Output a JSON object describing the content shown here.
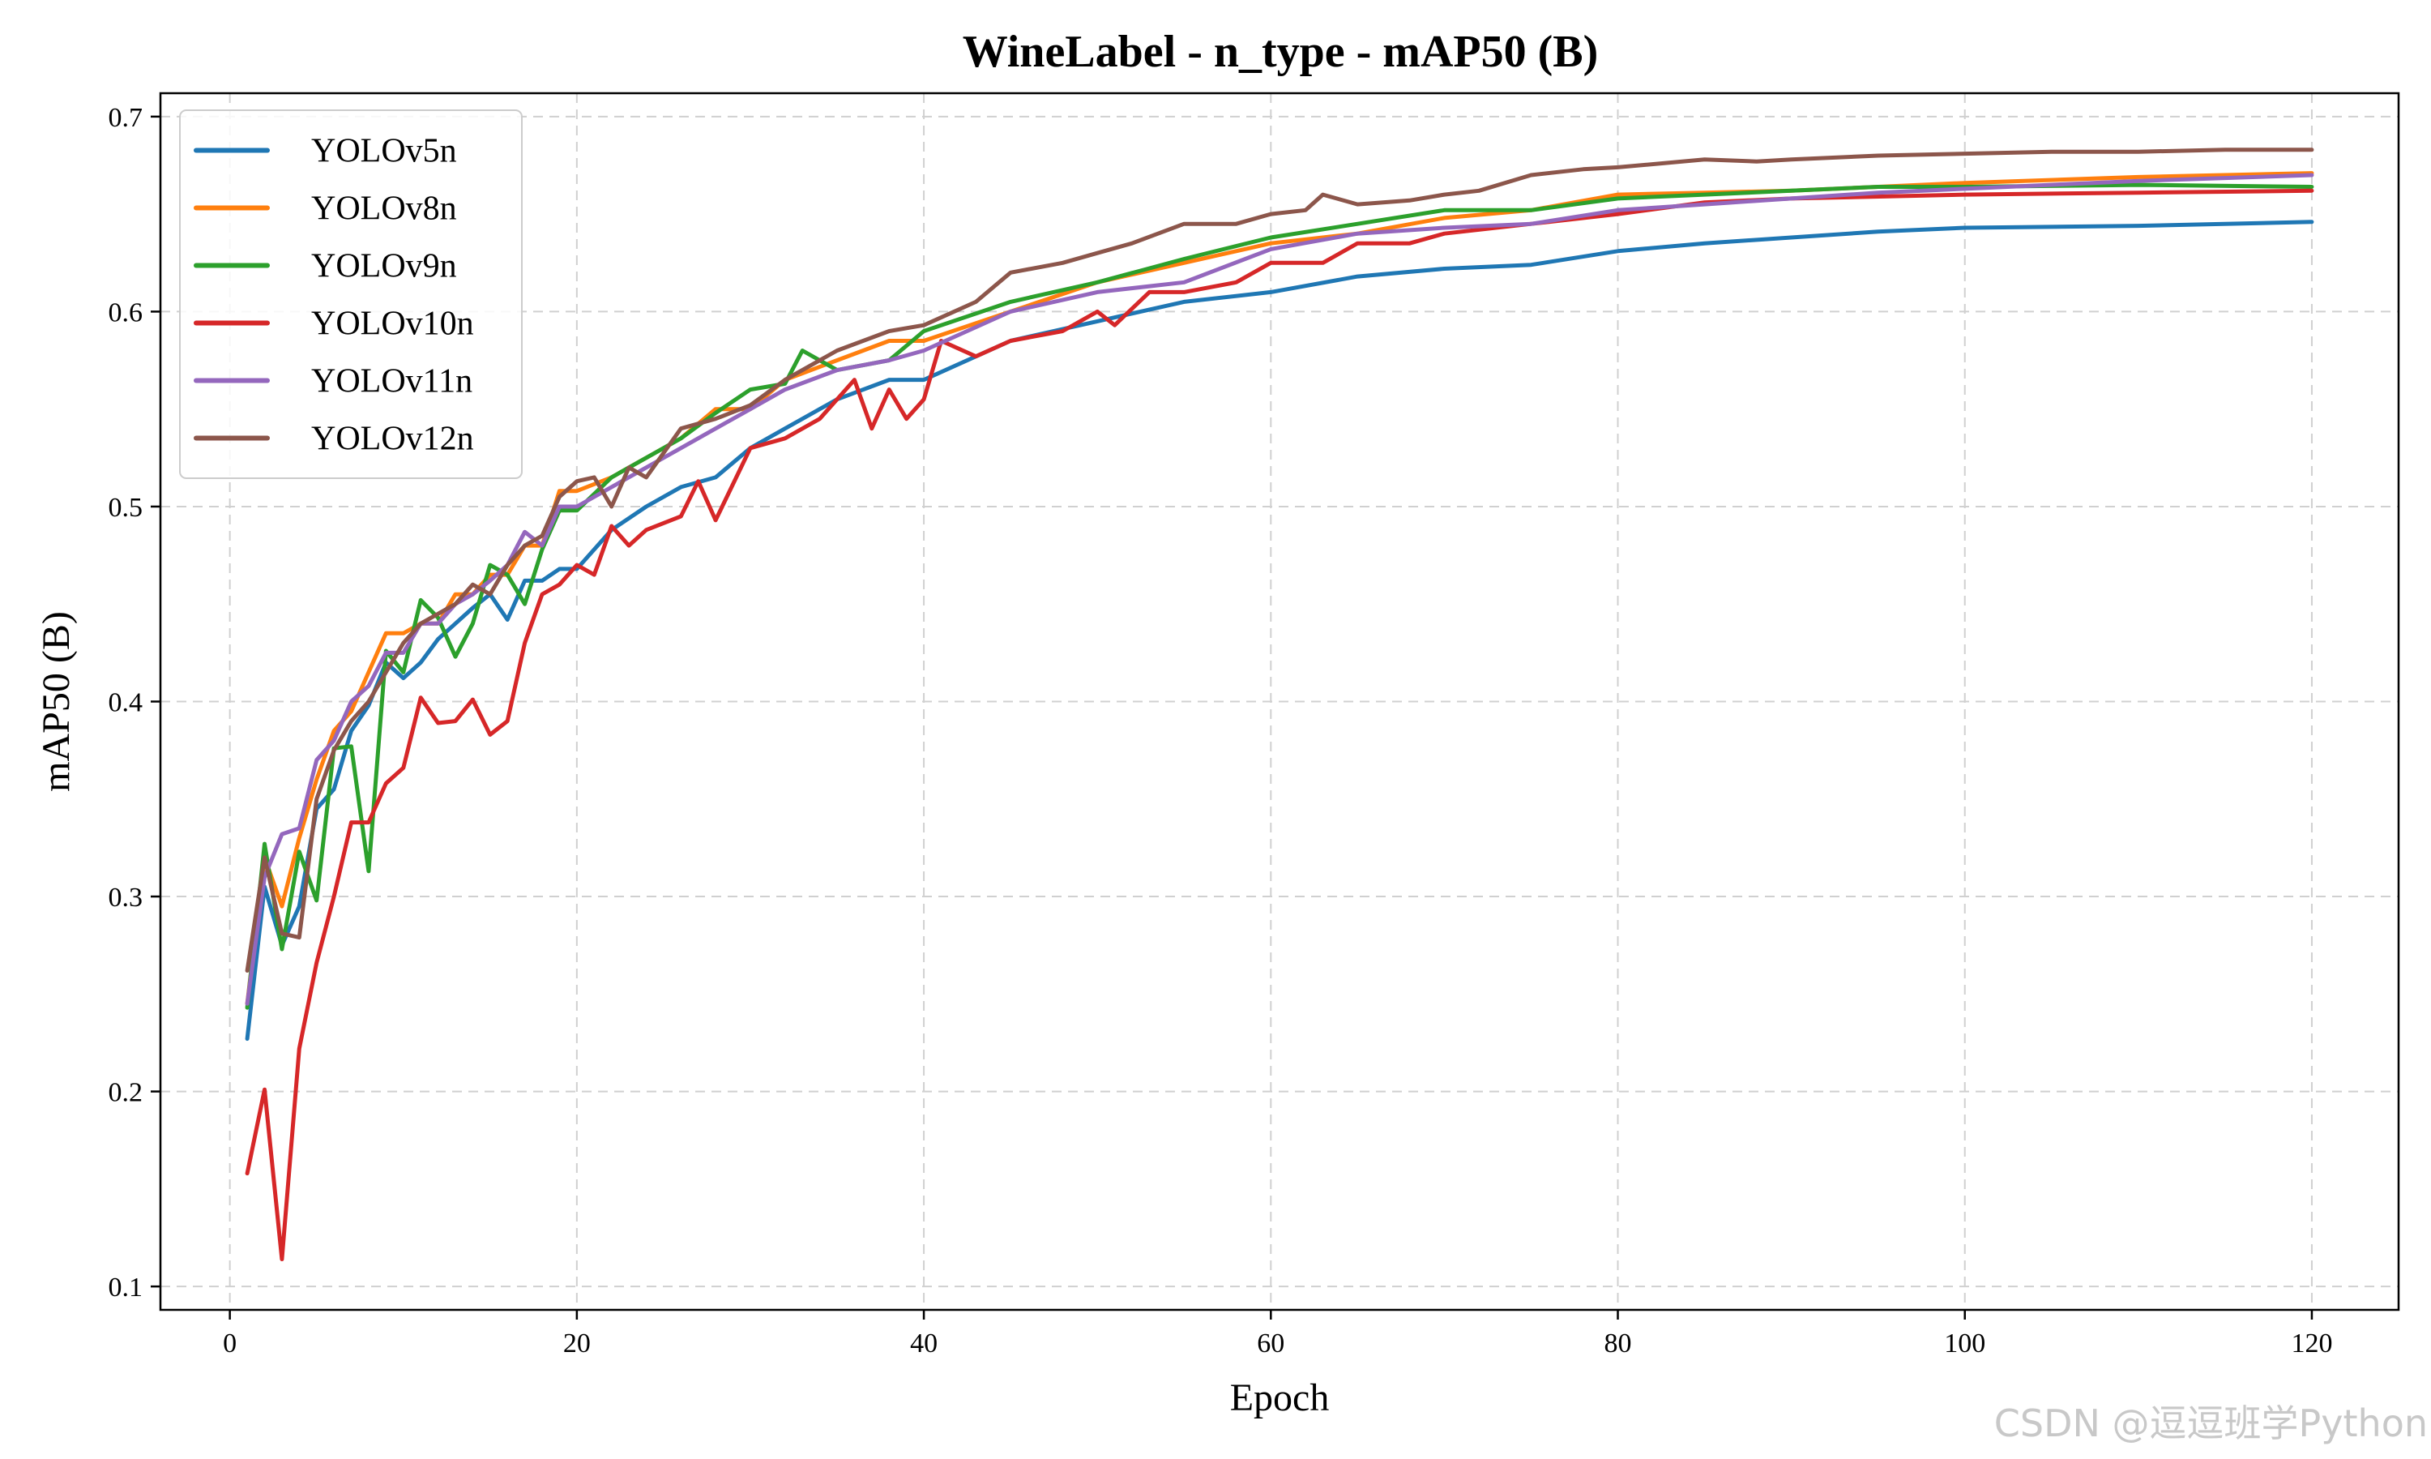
{
  "chart_data": {
    "type": "line",
    "title": "WineLabel - n_type - mAP50 (B)",
    "xlabel": "Epoch",
    "ylabel": "mAP50 (B)",
    "xlim": [
      -4,
      125
    ],
    "ylim": [
      0.088,
      0.712
    ],
    "xticks": [
      0,
      20,
      40,
      60,
      80,
      100,
      120
    ],
    "yticks": [
      0.1,
      0.2,
      0.3,
      0.4,
      0.5,
      0.6,
      0.7
    ],
    "grid": true,
    "legend_position": "top-left",
    "watermark": "CSDN @逗逗班学Python",
    "series": [
      {
        "name": "YOLOv5n",
        "color": "#1f77b4",
        "x": [
          1,
          2,
          3,
          4,
          5,
          6,
          7,
          8,
          9,
          10,
          11,
          12,
          13,
          14,
          15,
          16,
          17,
          18,
          19,
          20,
          22,
          24,
          26,
          28,
          30,
          32,
          35,
          38,
          40,
          45,
          50,
          55,
          60,
          65,
          70,
          75,
          80,
          85,
          90,
          95,
          100,
          110,
          120
        ],
        "y": [
          0.227,
          0.305,
          0.275,
          0.295,
          0.345,
          0.355,
          0.385,
          0.398,
          0.42,
          0.412,
          0.42,
          0.432,
          0.44,
          0.448,
          0.455,
          0.442,
          0.462,
          0.462,
          0.468,
          0.468,
          0.488,
          0.5,
          0.51,
          0.515,
          0.53,
          0.54,
          0.555,
          0.565,
          0.565,
          0.585,
          0.595,
          0.605,
          0.61,
          0.618,
          0.622,
          0.624,
          0.631,
          0.635,
          0.638,
          0.641,
          0.643,
          0.644,
          0.646
        ]
      },
      {
        "name": "YOLOv8n",
        "color": "#ff7f0e",
        "x": [
          1,
          2,
          3,
          4,
          5,
          6,
          7,
          8,
          9,
          10,
          11,
          12,
          13,
          14,
          15,
          16,
          17,
          18,
          19,
          20,
          22,
          24,
          26,
          28,
          30,
          32,
          35,
          38,
          40,
          45,
          50,
          55,
          60,
          65,
          70,
          75,
          80,
          85,
          90,
          95,
          100,
          110,
          120
        ],
        "y": [
          0.245,
          0.32,
          0.295,
          0.33,
          0.36,
          0.385,
          0.395,
          0.415,
          0.435,
          0.435,
          0.44,
          0.44,
          0.455,
          0.455,
          0.465,
          0.465,
          0.48,
          0.48,
          0.508,
          0.508,
          0.515,
          0.525,
          0.535,
          0.55,
          0.55,
          0.565,
          0.575,
          0.585,
          0.585,
          0.6,
          0.615,
          0.625,
          0.635,
          0.64,
          0.648,
          0.652,
          0.66,
          0.661,
          0.662,
          0.664,
          0.666,
          0.669,
          0.671
        ]
      },
      {
        "name": "YOLOv9n",
        "color": "#2ca02c",
        "x": [
          1,
          2,
          3,
          4,
          5,
          6,
          7,
          8,
          9,
          10,
          11,
          12,
          13,
          14,
          15,
          16,
          17,
          18,
          19,
          20,
          22,
          24,
          26,
          28,
          30,
          32,
          33,
          35,
          38,
          40,
          45,
          50,
          55,
          60,
          65,
          70,
          75,
          80,
          85,
          90,
          95,
          100,
          110,
          120
        ],
        "y": [
          0.243,
          0.327,
          0.273,
          0.323,
          0.298,
          0.376,
          0.377,
          0.313,
          0.426,
          0.415,
          0.452,
          0.443,
          0.423,
          0.44,
          0.47,
          0.465,
          0.45,
          0.478,
          0.498,
          0.498,
          0.515,
          0.525,
          0.535,
          0.548,
          0.56,
          0.563,
          0.58,
          0.57,
          0.575,
          0.59,
          0.605,
          0.615,
          0.627,
          0.638,
          0.645,
          0.652,
          0.652,
          0.658,
          0.66,
          0.662,
          0.664,
          0.664,
          0.665,
          0.664
        ]
      },
      {
        "name": "YOLOv10n",
        "color": "#d62728",
        "x": [
          1,
          2,
          3,
          4,
          5,
          6,
          7,
          8,
          9,
          10,
          11,
          12,
          13,
          14,
          15,
          16,
          17,
          18,
          19,
          20,
          21,
          22,
          23,
          24,
          26,
          27,
          28,
          30,
          32,
          34,
          36,
          37,
          38,
          39,
          40,
          41,
          43,
          45,
          48,
          50,
          51,
          53,
          55,
          58,
          60,
          63,
          65,
          68,
          70,
          75,
          80,
          85,
          90,
          100,
          110,
          120
        ],
        "y": [
          0.158,
          0.201,
          0.114,
          0.222,
          0.266,
          0.3,
          0.338,
          0.338,
          0.358,
          0.366,
          0.402,
          0.389,
          0.39,
          0.401,
          0.383,
          0.39,
          0.43,
          0.455,
          0.46,
          0.47,
          0.465,
          0.49,
          0.48,
          0.488,
          0.495,
          0.513,
          0.493,
          0.53,
          0.535,
          0.545,
          0.565,
          0.54,
          0.56,
          0.545,
          0.555,
          0.585,
          0.577,
          0.585,
          0.59,
          0.6,
          0.593,
          0.61,
          0.61,
          0.615,
          0.625,
          0.625,
          0.635,
          0.635,
          0.64,
          0.645,
          0.65,
          0.656,
          0.658,
          0.66,
          0.661,
          0.662
        ]
      },
      {
        "name": "YOLOv11n",
        "color": "#9467bd",
        "x": [
          1,
          2,
          3,
          4,
          5,
          6,
          7,
          8,
          9,
          10,
          11,
          12,
          13,
          14,
          15,
          16,
          17,
          18,
          19,
          20,
          22,
          24,
          26,
          28,
          30,
          32,
          35,
          38,
          40,
          45,
          50,
          55,
          60,
          65,
          70,
          75,
          80,
          85,
          90,
          95,
          100,
          110,
          120
        ],
        "y": [
          0.245,
          0.31,
          0.332,
          0.335,
          0.37,
          0.38,
          0.4,
          0.408,
          0.425,
          0.425,
          0.44,
          0.44,
          0.45,
          0.455,
          0.462,
          0.47,
          0.487,
          0.48,
          0.5,
          0.5,
          0.51,
          0.52,
          0.53,
          0.54,
          0.55,
          0.56,
          0.57,
          0.575,
          0.58,
          0.6,
          0.61,
          0.615,
          0.632,
          0.64,
          0.643,
          0.645,
          0.652,
          0.655,
          0.658,
          0.661,
          0.663,
          0.667,
          0.67
        ]
      },
      {
        "name": "YOLOv12n",
        "color": "#8c564b",
        "x": [
          1,
          2,
          3,
          4,
          5,
          6,
          7,
          8,
          9,
          10,
          11,
          12,
          13,
          14,
          15,
          16,
          17,
          18,
          19,
          20,
          21,
          22,
          23,
          24,
          26,
          28,
          30,
          32,
          35,
          38,
          40,
          43,
          45,
          48,
          50,
          52,
          55,
          58,
          60,
          62,
          63,
          65,
          68,
          70,
          72,
          75,
          78,
          80,
          85,
          88,
          90,
          95,
          100,
          105,
          110,
          115,
          120
        ],
        "y": [
          0.262,
          0.32,
          0.281,
          0.279,
          0.35,
          0.375,
          0.39,
          0.4,
          0.415,
          0.43,
          0.44,
          0.445,
          0.45,
          0.46,
          0.455,
          0.47,
          0.48,
          0.485,
          0.505,
          0.513,
          0.515,
          0.5,
          0.52,
          0.515,
          0.54,
          0.545,
          0.552,
          0.565,
          0.58,
          0.59,
          0.593,
          0.605,
          0.62,
          0.625,
          0.63,
          0.635,
          0.645,
          0.645,
          0.65,
          0.652,
          0.66,
          0.655,
          0.657,
          0.66,
          0.662,
          0.67,
          0.673,
          0.674,
          0.678,
          0.677,
          0.678,
          0.68,
          0.681,
          0.682,
          0.682,
          0.683,
          0.683
        ]
      }
    ]
  }
}
